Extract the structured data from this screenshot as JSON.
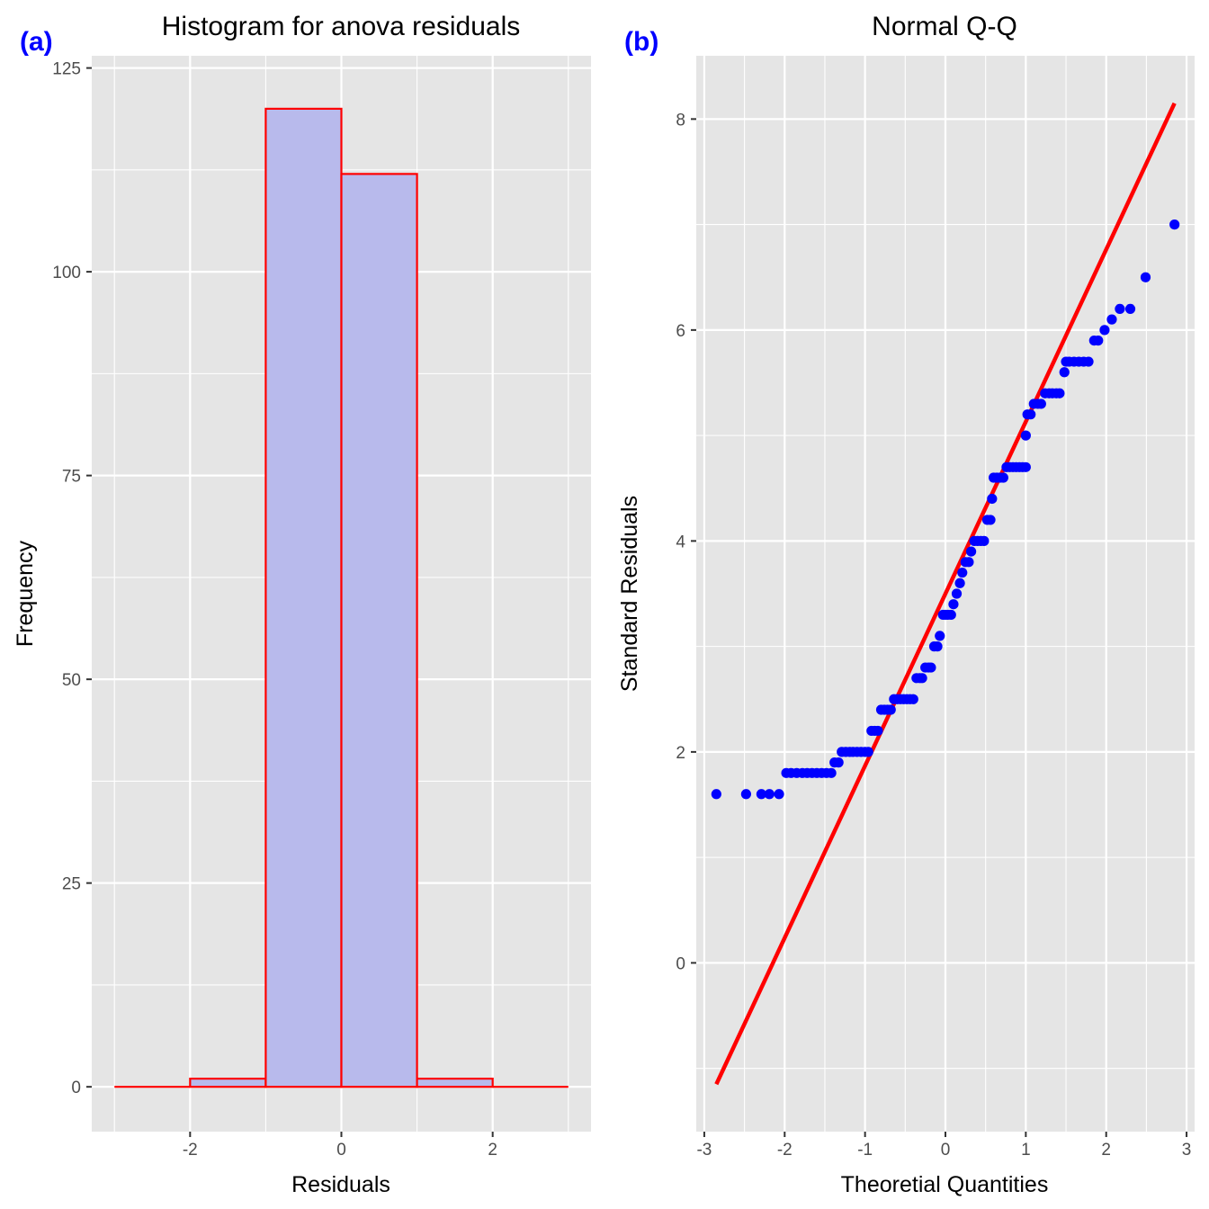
{
  "panel_label_color": "#0000ff",
  "panel_background": "#e5e5e5",
  "grid_color": "#ffffff",
  "chart_data": [
    {
      "panel_label": "(a)",
      "type": "bar",
      "subtype": "histogram",
      "title": "Histogram for anova residuals",
      "xlabel": "Residuals",
      "ylabel": "Frequency",
      "xlim": [
        -3.3,
        3.3
      ],
      "ylim": [
        -5.5,
        126.5
      ],
      "xticks": [
        -2,
        0,
        2
      ],
      "xtick_labels": [
        "-2",
        "0",
        "2"
      ],
      "yticks": [
        0,
        25,
        50,
        75,
        100,
        125
      ],
      "ytick_labels": [
        "0",
        "25",
        "50",
        "75",
        "100",
        "125"
      ],
      "grid": true,
      "bin_edges": [
        -3,
        -2,
        -1,
        0,
        1,
        2,
        3
      ],
      "values": [
        0,
        1,
        120,
        112,
        1,
        0
      ],
      "fill_color": "#b8baec",
      "edge_color": "#ff0000"
    },
    {
      "panel_label": "(b)",
      "type": "scatter",
      "subtype": "qq",
      "title": "Normal Q-Q",
      "xlabel": "Theoretial Quantities",
      "ylabel": "Standard Residuals",
      "xlim": [
        -3.1,
        3.1
      ],
      "ylim": [
        -1.6,
        8.6
      ],
      "xticks": [
        -3,
        -2,
        -1,
        0,
        1,
        2,
        3
      ],
      "xtick_labels": [
        "-3",
        "-2",
        "-1",
        "0",
        "1",
        "2",
        "3"
      ],
      "yticks": [
        0,
        2,
        4,
        6,
        8
      ],
      "ytick_labels": [
        "0",
        "2",
        "4",
        "6",
        "8"
      ],
      "grid": true,
      "point_color": "#0000ff",
      "line_color": "#ff0000",
      "reference_line": {
        "x": [
          -2.85,
          2.85
        ],
        "y": [
          -1.15,
          8.15
        ]
      },
      "points": [
        {
          "x": -2.85,
          "y": 1.6
        },
        {
          "x": -2.48,
          "y": 1.6
        },
        {
          "x": -2.29,
          "y": 1.6
        },
        {
          "x": -2.19,
          "y": 1.6
        },
        {
          "x": -2.07,
          "y": 1.6
        },
        {
          "x": -1.98,
          "y": 1.8
        },
        {
          "x": -1.92,
          "y": 1.8
        },
        {
          "x": -1.85,
          "y": 1.8
        },
        {
          "x": -1.78,
          "y": 1.8
        },
        {
          "x": -1.72,
          "y": 1.8
        },
        {
          "x": -1.66,
          "y": 1.8
        },
        {
          "x": -1.6,
          "y": 1.8
        },
        {
          "x": -1.54,
          "y": 1.8
        },
        {
          "x": -1.48,
          "y": 1.8
        },
        {
          "x": -1.42,
          "y": 1.8
        },
        {
          "x": -1.38,
          "y": 1.9
        },
        {
          "x": -1.33,
          "y": 1.9
        },
        {
          "x": -1.29,
          "y": 2.0
        },
        {
          "x": -1.24,
          "y": 2.0
        },
        {
          "x": -1.19,
          "y": 2.0
        },
        {
          "x": -1.15,
          "y": 2.0
        },
        {
          "x": -1.1,
          "y": 2.0
        },
        {
          "x": -1.05,
          "y": 2.0
        },
        {
          "x": -1.0,
          "y": 2.0
        },
        {
          "x": -0.96,
          "y": 2.0
        },
        {
          "x": -0.92,
          "y": 2.2
        },
        {
          "x": -0.88,
          "y": 2.2
        },
        {
          "x": -0.84,
          "y": 2.2
        },
        {
          "x": -0.8,
          "y": 2.4
        },
        {
          "x": -0.76,
          "y": 2.4
        },
        {
          "x": -0.72,
          "y": 2.4
        },
        {
          "x": -0.68,
          "y": 2.4
        },
        {
          "x": -0.64,
          "y": 2.5
        },
        {
          "x": -0.6,
          "y": 2.5
        },
        {
          "x": -0.56,
          "y": 2.5
        },
        {
          "x": -0.52,
          "y": 2.5
        },
        {
          "x": -0.48,
          "y": 2.5
        },
        {
          "x": -0.44,
          "y": 2.5
        },
        {
          "x": -0.4,
          "y": 2.5
        },
        {
          "x": -0.36,
          "y": 2.7
        },
        {
          "x": -0.32,
          "y": 2.7
        },
        {
          "x": -0.29,
          "y": 2.7
        },
        {
          "x": -0.25,
          "y": 2.8
        },
        {
          "x": -0.21,
          "y": 2.8
        },
        {
          "x": -0.18,
          "y": 2.8
        },
        {
          "x": -0.14,
          "y": 3.0
        },
        {
          "x": -0.1,
          "y": 3.0
        },
        {
          "x": -0.07,
          "y": 3.1
        },
        {
          "x": -0.03,
          "y": 3.3
        },
        {
          "x": 0.0,
          "y": 3.3
        },
        {
          "x": 0.03,
          "y": 3.3
        },
        {
          "x": 0.07,
          "y": 3.3
        },
        {
          "x": 0.1,
          "y": 3.4
        },
        {
          "x": 0.14,
          "y": 3.5
        },
        {
          "x": 0.18,
          "y": 3.6
        },
        {
          "x": 0.21,
          "y": 3.7
        },
        {
          "x": 0.25,
          "y": 3.8
        },
        {
          "x": 0.29,
          "y": 3.8
        },
        {
          "x": 0.32,
          "y": 3.9
        },
        {
          "x": 0.36,
          "y": 4.0
        },
        {
          "x": 0.4,
          "y": 4.0
        },
        {
          "x": 0.44,
          "y": 4.0
        },
        {
          "x": 0.48,
          "y": 4.0
        },
        {
          "x": 0.52,
          "y": 4.2
        },
        {
          "x": 0.56,
          "y": 4.2
        },
        {
          "x": 0.58,
          "y": 4.4
        },
        {
          "x": 0.6,
          "y": 4.6
        },
        {
          "x": 0.64,
          "y": 4.6
        },
        {
          "x": 0.68,
          "y": 4.6
        },
        {
          "x": 0.72,
          "y": 4.6
        },
        {
          "x": 0.76,
          "y": 4.7
        },
        {
          "x": 0.8,
          "y": 4.7
        },
        {
          "x": 0.84,
          "y": 4.7
        },
        {
          "x": 0.88,
          "y": 4.7
        },
        {
          "x": 0.92,
          "y": 4.7
        },
        {
          "x": 0.96,
          "y": 4.7
        },
        {
          "x": 1.0,
          "y": 4.7
        },
        {
          "x": 1.0,
          "y": 5.0
        },
        {
          "x": 1.02,
          "y": 5.2
        },
        {
          "x": 1.06,
          "y": 5.2
        },
        {
          "x": 1.1,
          "y": 5.3
        },
        {
          "x": 1.15,
          "y": 5.3
        },
        {
          "x": 1.19,
          "y": 5.3
        },
        {
          "x": 1.24,
          "y": 5.4
        },
        {
          "x": 1.29,
          "y": 5.4
        },
        {
          "x": 1.33,
          "y": 5.4
        },
        {
          "x": 1.38,
          "y": 5.4
        },
        {
          "x": 1.42,
          "y": 5.4
        },
        {
          "x": 1.48,
          "y": 5.6
        },
        {
          "x": 1.5,
          "y": 5.7
        },
        {
          "x": 1.54,
          "y": 5.7
        },
        {
          "x": 1.6,
          "y": 5.7
        },
        {
          "x": 1.66,
          "y": 5.7
        },
        {
          "x": 1.72,
          "y": 5.7
        },
        {
          "x": 1.78,
          "y": 5.7
        },
        {
          "x": 1.85,
          "y": 5.9
        },
        {
          "x": 1.9,
          "y": 5.9
        },
        {
          "x": 1.98,
          "y": 6.0
        },
        {
          "x": 2.07,
          "y": 6.1
        },
        {
          "x": 2.17,
          "y": 6.2
        },
        {
          "x": 2.3,
          "y": 6.2
        },
        {
          "x": 2.49,
          "y": 6.5
        },
        {
          "x": 2.85,
          "y": 7.0
        }
      ]
    }
  ]
}
